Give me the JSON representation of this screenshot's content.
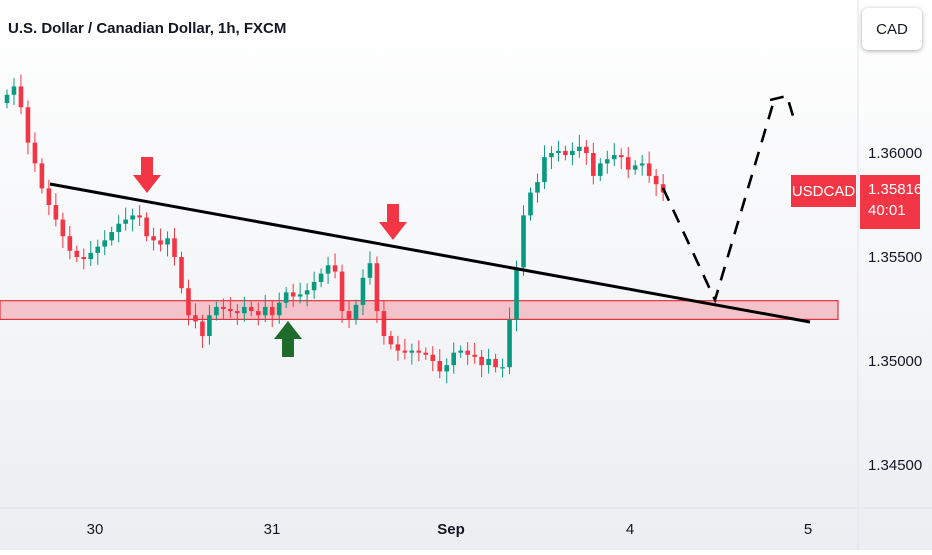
{
  "title": "U.S. Dollar / Canadian Dollar, 1h, FXCM",
  "currency_button": "CAD",
  "symbol_tag": "USDCAD",
  "price_tag": {
    "price": "1.35816",
    "countdown": "40:01"
  },
  "colors": {
    "up": "#089981",
    "down": "#f23645",
    "zone_fill": "#f3c3c9",
    "zone_border": "#e0323f",
    "arrow_green": "#1f6b2c"
  },
  "chart_data": {
    "type": "candlestick",
    "x_ticks": [
      "30",
      "31",
      "Sep",
      "4",
      "5"
    ],
    "y_ticks": [
      "1.36000",
      "1.35500",
      "1.35000",
      "1.34500"
    ],
    "ylim": [
      1.3425,
      1.3655
    ],
    "close_series": [
      1.3628,
      1.3632,
      1.3622,
      1.3605,
      1.3595,
      1.3583,
      1.3575,
      1.3568,
      1.356,
      1.3553,
      1.355,
      1.3549,
      1.3552,
      1.3555,
      1.3558,
      1.3562,
      1.3566,
      1.3568,
      1.357,
      1.3569,
      1.356,
      1.3558,
      1.3556,
      1.3559,
      1.355,
      1.3535,
      1.3522,
      1.3519,
      1.3512,
      1.3522,
      1.3526,
      1.3525,
      1.3524,
      1.3523,
      1.3526,
      1.3524,
      1.3522,
      1.3526,
      1.3522,
      1.3528,
      1.3533,
      1.3531,
      1.3532,
      1.3534,
      1.3538,
      1.3542,
      1.3546,
      1.3543,
      1.3524,
      1.352,
      1.3527,
      1.354,
      1.3547,
      1.3524,
      1.3512,
      1.3508,
      1.3505,
      1.3504,
      1.3505,
      1.3504,
      1.3503,
      1.35,
      1.3495,
      1.3498,
      1.3504,
      1.3505,
      1.3503,
      1.3502,
      1.3498,
      1.3501,
      1.3497,
      1.3497,
      1.352,
      1.3545,
      1.357,
      1.3581,
      1.3586,
      1.3598,
      1.36,
      1.3601,
      1.3599,
      1.3601,
      1.3603,
      1.36,
      1.3589,
      1.3595,
      1.3597,
      1.3599,
      1.3598,
      1.3592,
      1.3594,
      1.3595,
      1.3589,
      1.3585,
      1.3581
    ],
    "annotations": {
      "zone": [
        1.352,
        1.3529
      ],
      "resistance_line": [
        [
          "30",
          1.3586
        ],
        [
          "5",
          1.3519
        ]
      ],
      "markers": [
        "down-arrow",
        "down-arrow",
        "up-arrow"
      ],
      "projection": "dashed-path"
    }
  }
}
